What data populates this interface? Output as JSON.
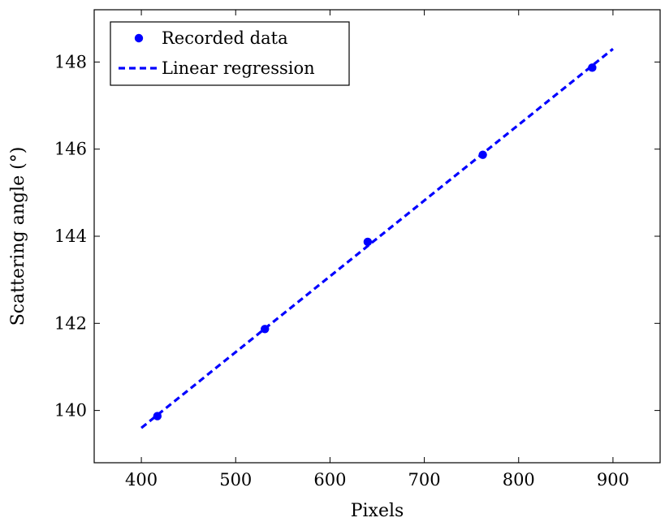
{
  "chart_data": {
    "type": "scatter",
    "title": "",
    "xlabel": "Pixels",
    "ylabel": "Scattering angle (°)",
    "xlim": [
      350,
      950
    ],
    "ylim": [
      138.8,
      149.2
    ],
    "xticks": [
      400,
      500,
      600,
      700,
      800,
      900
    ],
    "yticks": [
      140,
      142,
      144,
      146,
      148
    ],
    "grid": false,
    "legend_position": "top-left",
    "series": [
      {
        "name": "Recorded data",
        "kind": "scatter",
        "color": "#0000ff",
        "x": [
          417,
          531,
          640,
          762,
          878
        ],
        "y": [
          139.87,
          141.87,
          143.87,
          145.87,
          147.87
        ]
      },
      {
        "name": "Linear regression",
        "kind": "line",
        "style": "dashed",
        "color": "#0000ff",
        "x": [
          400,
          900
        ],
        "y": [
          139.6,
          148.3
        ]
      }
    ]
  }
}
